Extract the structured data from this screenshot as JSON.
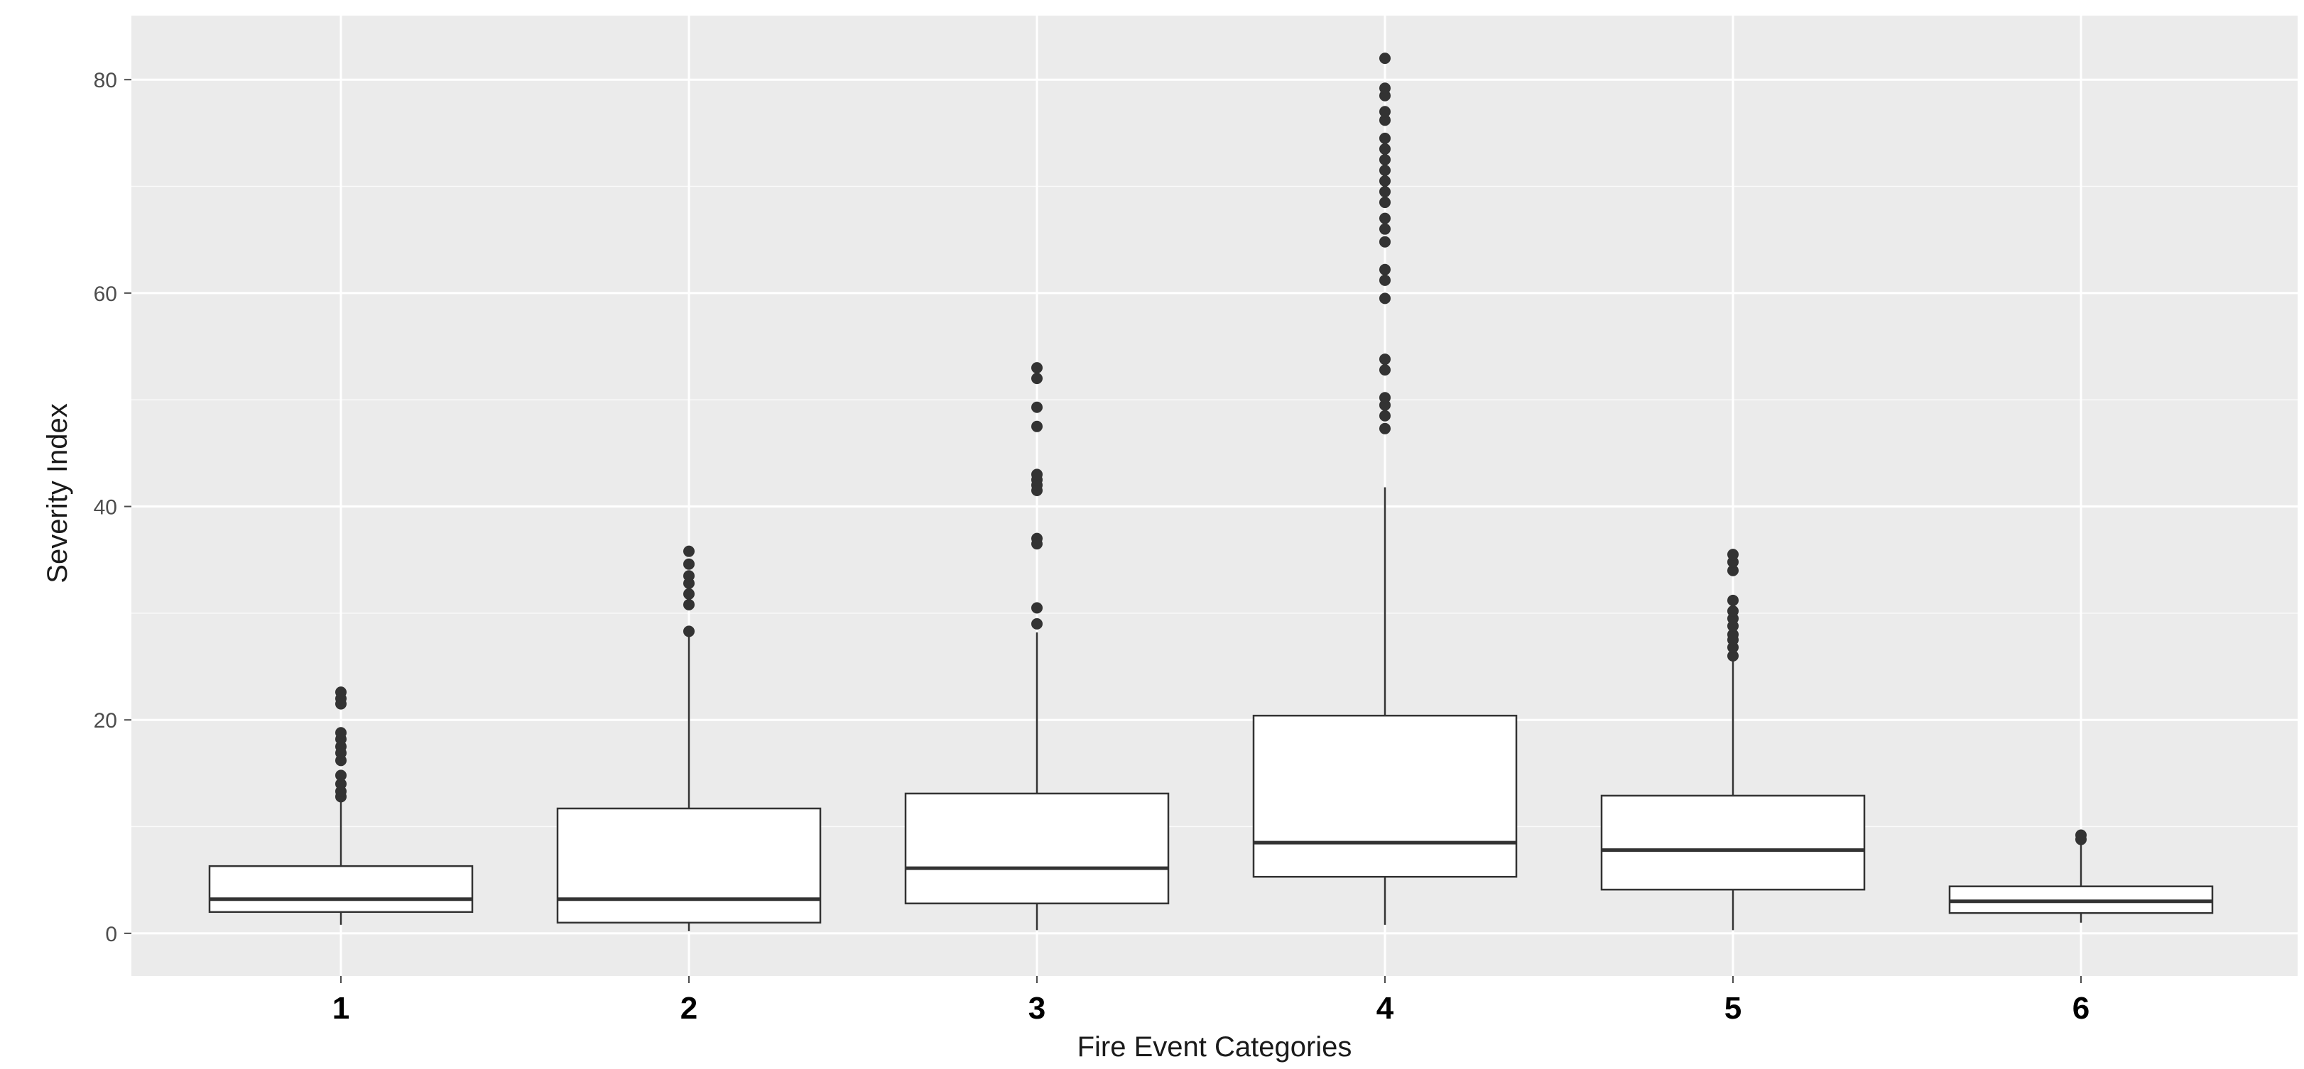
{
  "chart_data": {
    "type": "boxplot",
    "xlabel": "Fire Event Categories",
    "ylabel": "Severity Index",
    "categories": [
      "1",
      "2",
      "3",
      "4",
      "5",
      "6"
    ],
    "ylim": [
      -4,
      86
    ],
    "yticks": [
      0,
      20,
      40,
      60,
      80
    ],
    "ytick_labels": [
      "0",
      "20",
      "40",
      "60",
      "80"
    ],
    "grid": true,
    "colors": {
      "panel_bg": "#ebebeb",
      "grid_major": "#ffffff",
      "box_fill": "#ffffff",
      "box_stroke": "#333333",
      "outlier": "#333333"
    },
    "boxes": [
      {
        "category": "1",
        "whisker_low": 0.8,
        "q1": 2.0,
        "median": 3.2,
        "q3": 6.3,
        "whisker_high": 12.5,
        "outliers": [
          12.8,
          13.3,
          14.0,
          14.8,
          16.2,
          16.9,
          17.5,
          18.2,
          18.8,
          21.5,
          22.0,
          22.6
        ]
      },
      {
        "category": "2",
        "whisker_low": 0.2,
        "q1": 1.0,
        "median": 3.2,
        "q3": 11.7,
        "whisker_high": 28.0,
        "outliers": [
          28.3,
          30.8,
          31.8,
          32.8,
          33.5,
          34.6,
          35.8
        ]
      },
      {
        "category": "3",
        "whisker_low": 0.3,
        "q1": 2.8,
        "median": 6.1,
        "q3": 13.1,
        "whisker_high": 28.2,
        "outliers": [
          29.0,
          30.5,
          36.5,
          37.0,
          41.5,
          42.0,
          42.5,
          43.0,
          47.5,
          49.3,
          52.0,
          53.0
        ]
      },
      {
        "category": "4",
        "whisker_low": 0.8,
        "q1": 5.3,
        "median": 8.5,
        "q3": 20.4,
        "whisker_high": 41.8,
        "outliers": [
          47.3,
          48.5,
          49.5,
          50.2,
          52.8,
          53.8,
          59.5,
          61.2,
          62.2,
          64.8,
          66.0,
          67.0,
          68.5,
          69.5,
          70.5,
          71.5,
          72.5,
          73.5,
          74.5,
          76.2,
          77.0,
          78.5,
          79.2,
          82.0
        ]
      },
      {
        "category": "5",
        "whisker_low": 0.3,
        "q1": 4.1,
        "median": 7.8,
        "q3": 12.9,
        "whisker_high": 25.8,
        "outliers": [
          26.0,
          26.8,
          27.5,
          28.0,
          28.8,
          29.5,
          30.2,
          31.2,
          34.0,
          34.8,
          35.5
        ]
      },
      {
        "category": "6",
        "whisker_low": 1.0,
        "q1": 1.9,
        "median": 3.0,
        "q3": 4.4,
        "whisker_high": 8.5,
        "outliers": [
          8.8,
          9.2
        ]
      }
    ]
  }
}
